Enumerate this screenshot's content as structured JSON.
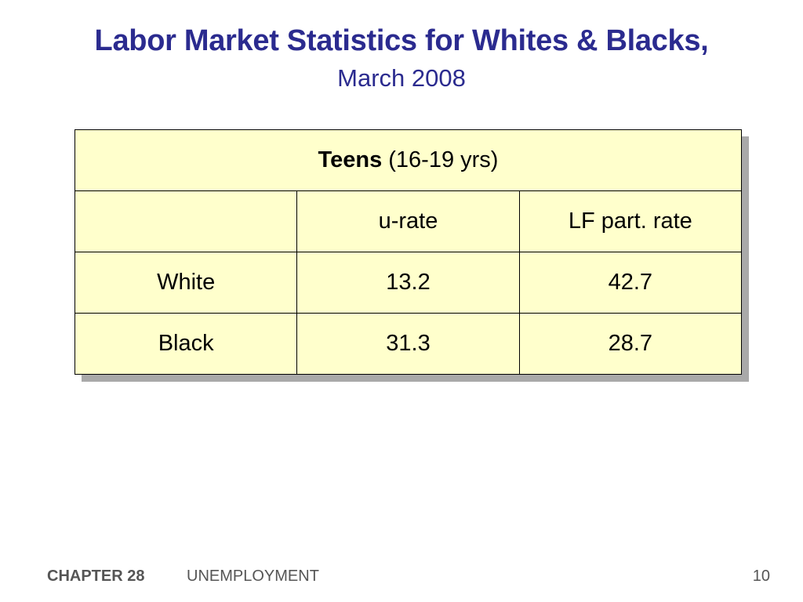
{
  "slide": {
    "title": "Labor Market Statistics for Whites & Blacks,",
    "subtitle": "March 2008"
  },
  "table": {
    "group_label_bold": "Teens",
    "group_label_rest": " (16-19 yrs)",
    "header": [
      "",
      "u-rate",
      "LF part. rate"
    ],
    "rows": [
      [
        "White",
        "13.2",
        "42.7"
      ],
      [
        "Black",
        "31.3",
        "28.7"
      ]
    ],
    "fill_color": "#ffffcc"
  },
  "footer": {
    "chapter": "CHAPTER 28",
    "topic": "UNEMPLOYMENT",
    "page": "10"
  }
}
